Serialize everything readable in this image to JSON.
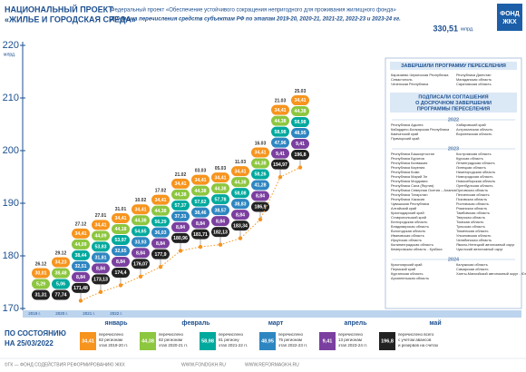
{
  "header": {
    "title_lines": [
      "НАЦИОНАЛЬНЫЙ ПРОЕКТ",
      "«ЖИЛЬЕ И ГОРОДСКАЯ СРЕДА»"
    ],
    "subtitle": "Федеральный проект «Обеспечение устойчивого сокращения непригодного для проживания жилищного фонда»",
    "subtitle2": "Динамика перечисления средств субъектам РФ по этапам 2019-20, 2020-21, 2021-22, 2022-23 и 2023-24 гг.",
    "total": "330,51",
    "total_unit": "млрд.",
    "logo_lines": [
      "ФОНД",
      "ЖКХ"
    ]
  },
  "chart_data": {
    "type": "line",
    "y_unit": "млрд.",
    "ylim": [
      170,
      220
    ],
    "yticks": [
      170,
      180,
      190,
      200,
      210,
      220
    ],
    "line_color": "#f7941d",
    "years": [
      "2019 г.",
      "2020 г.",
      "2021 г.",
      "2022 г."
    ],
    "months": [
      "январь",
      "февраль",
      "март",
      "апрель",
      "май"
    ],
    "columns": [
      {
        "date": "26.12",
        "values": [
          30.01,
          5.29,
          31.31
        ],
        "value_labels": [
          "30,01",
          "5,29",
          "31,31"
        ],
        "colors": [
          "#f7941d",
          "#8dc63f",
          "#222222"
        ]
      },
      {
        "date": "29.12",
        "values": [
          34.23,
          38.48,
          5.06,
          77.74
        ],
        "value_labels": [
          "34,23",
          "38,48",
          "5,06",
          "77,74"
        ],
        "colors": [
          "#f7941d",
          "#8dc63f",
          "#00a99d",
          "#222222"
        ]
      },
      {
        "date": "27.12",
        "values": [
          34.41,
          44.09,
          38.44,
          32.51,
          8.84,
          171.48
        ],
        "value_labels": [
          "34,41",
          "44,09",
          "38,44",
          "32,51",
          "8,84",
          "171,48"
        ],
        "colors": [
          "#f7941d",
          "#8dc63f",
          "#00a99d",
          "#2e86c1",
          "#7b3fa0",
          "#222222"
        ]
      },
      {
        "date": "27.01",
        "values": [
          34.41,
          44.09,
          53.83,
          31.81,
          8.84,
          173.13
        ],
        "value_labels": [
          "34,41",
          "44,09",
          "53,83",
          "31,81",
          "8,84",
          "173,13"
        ],
        "colors": [
          "#f7941d",
          "#8dc63f",
          "#00a99d",
          "#2e86c1",
          "#7b3fa0",
          "#222222"
        ]
      },
      {
        "date": "31.01",
        "values": [
          34.41,
          44.18,
          53.97,
          32.65,
          8.84,
          174.4
        ],
        "value_labels": [
          "34,41",
          "44,18",
          "53,97",
          "32,65",
          "8,84",
          "174,4"
        ],
        "colors": [
          "#f7941d",
          "#8dc63f",
          "#00a99d",
          "#2e86c1",
          "#7b3fa0",
          "#222222"
        ]
      },
      {
        "date": "10.02",
        "values": [
          34.41,
          44.38,
          54.65,
          33.93,
          8.84,
          176.07
        ],
        "value_labels": [
          "34,41",
          "44,38",
          "54,65",
          "33,93",
          "8,84",
          "176,07"
        ],
        "colors": [
          "#f7941d",
          "#8dc63f",
          "#00a99d",
          "#2e86c1",
          "#7b3fa0",
          "#222222"
        ]
      },
      {
        "date": "17.02",
        "values": [
          34.41,
          44.38,
          56.29,
          36.03,
          8.84,
          177.9
        ],
        "value_labels": [
          "34,41",
          "44,38",
          "56,29",
          "36,03",
          "8,84",
          "177,9"
        ],
        "colors": [
          "#f7941d",
          "#8dc63f",
          "#00a99d",
          "#2e86c1",
          "#7b3fa0",
          "#222222"
        ]
      },
      {
        "date": "21.02",
        "values": [
          34.41,
          44.38,
          57.37,
          37.31,
          8.84,
          180.96
        ],
        "value_labels": [
          "34,41",
          "44,38",
          "57,37",
          "37,31",
          "8,84",
          "180,96"
        ],
        "colors": [
          "#f7941d",
          "#8dc63f",
          "#00a99d",
          "#2e86c1",
          "#7b3fa0",
          "#222222"
        ]
      },
      {
        "date": "03.03",
        "values": [
          34.41,
          44.38,
          57.62,
          38.46,
          8.84,
          181.71
        ],
        "value_labels": [
          "34,41",
          "44,38",
          "57,62",
          "38,46",
          "8,84",
          "181,71"
        ],
        "colors": [
          "#f7941d",
          "#8dc63f",
          "#00a99d",
          "#2e86c1",
          "#7b3fa0",
          "#222222"
        ]
      },
      {
        "date": "05.03",
        "values": [
          34.41,
          44.38,
          57.78,
          38.57,
          8.84,
          182.13
        ],
        "value_labels": [
          "34,41",
          "44,38",
          "57,78",
          "38,57",
          "8,84",
          "182,13"
        ],
        "colors": [
          "#f7941d",
          "#8dc63f",
          "#00a99d",
          "#2e86c1",
          "#7b3fa0",
          "#222222"
        ]
      },
      {
        "date": "11.03",
        "values": [
          34.41,
          44.38,
          58.08,
          38.83,
          8.84,
          183.34
        ],
        "value_labels": [
          "34,41",
          "44,38",
          "58,08",
          "38,83",
          "8,84",
          "183,34"
        ],
        "colors": [
          "#f7941d",
          "#8dc63f",
          "#00a99d",
          "#2e86c1",
          "#7b3fa0",
          "#222222"
        ]
      },
      {
        "date": "16.03",
        "values": [
          34.41,
          44.38,
          58.26,
          41.28,
          8.84,
          186.9
        ],
        "value_labels": [
          "34,41",
          "44,38",
          "58,26",
          "41,28",
          "8,84",
          "186,9"
        ],
        "colors": [
          "#f7941d",
          "#8dc63f",
          "#00a99d",
          "#2e86c1",
          "#7b3fa0",
          "#222222"
        ]
      },
      {
        "date": "21.03",
        "values": [
          34.41,
          44.38,
          58.98,
          47.96,
          9.41,
          194.97
        ],
        "value_labels": [
          "34,41",
          "44,38",
          "58,98",
          "47,96",
          "9,41",
          "194,97"
        ],
        "colors": [
          "#f7941d",
          "#8dc63f",
          "#00a99d",
          "#2e86c1",
          "#7b3fa0",
          "#222222"
        ]
      },
      {
        "date": "25.03",
        "values": [
          34.41,
          44.38,
          58.98,
          48.95,
          9.41,
          196.8
        ],
        "value_labels": [
          "34,41",
          "44,38",
          "58,98",
          "48,95",
          "9,41",
          "196,8"
        ],
        "colors": [
          "#f7941d",
          "#8dc63f",
          "#00a99d",
          "#2e86c1",
          "#7b3fa0",
          "#222222"
        ]
      }
    ]
  },
  "legend": [
    {
      "value": 34.41,
      "value_label": "34,41",
      "color": "#f7941d",
      "lines": [
        "перечислено",
        "82 регионам",
        "этап 2019-20 гг."
      ]
    },
    {
      "value": 44.38,
      "value_label": "44,38",
      "color": "#8dc63f",
      "lines": [
        "перечислено",
        "82 регионам",
        "этап 2020-21 гг."
      ]
    },
    {
      "value": 58.98,
      "value_label": "58,98",
      "color": "#00a99d",
      "lines": [
        "перечислено",
        "81 региону",
        "этап 2021-22 гг."
      ]
    },
    {
      "value": 48.95,
      "value_label": "48,95",
      "color": "#2e86c1",
      "lines": [
        "перечислено",
        "75 регионам",
        "этап 2022-23 гг."
      ]
    },
    {
      "value": 9.41,
      "value_label": "9,41",
      "color": "#7b3fa0",
      "lines": [
        "перечислено",
        "13 регионам",
        "этап 2023-24 гг."
      ]
    },
    {
      "value": 196.8,
      "value_label": "196,8",
      "color": "#222222",
      "lines": [
        "перечислено всего",
        "с учетом авансов",
        "и резервов на счетах"
      ]
    }
  ],
  "status": [
    "ПО СОСТОЯНИЮ",
    "НА 25/03/2022"
  ],
  "side_panel": {
    "completed_title": "ЗАВЕРШИЛИ ПРОГРАММУ ПЕРЕСЕЛЕНИЯ",
    "completed": [
      "Карачаево-Черкесская Республика",
      "Севастополь",
      "Чеченская Республика",
      "Республика Дагестан",
      "Магаданская область",
      "Саратовская область"
    ],
    "early_title": [
      "ПОДПИСАЛИ СОГЛАШЕНИЯ",
      "О ДОСРОЧНОМ ЗАВЕРШЕНИИ",
      "ПРОГРАММЫ ПЕРЕСЕЛЕНИЯ"
    ],
    "groups": [
      {
        "year": "2022",
        "regions": [
          "Республика Адыгея",
          "Кабардино-Балкарская Республика",
          "Камчатский край",
          "Приморский край",
          "Хабаровский край",
          "Астраханская область",
          "Воронежская область"
        ]
      },
      {
        "year": "2023",
        "regions": [
          "Республика Башкортостан",
          "Республика Бурятия",
          "Республика Калмыкия",
          "Республика Карелия",
          "Республика Коми",
          "Республика Марий Эл",
          "Республика Мордовия",
          "Республика Саха (Якутия)",
          "Республика Северная Осетия – Алания",
          "Республика Татарстан",
          "Республика Хакасия",
          "Чувашская Республика",
          "Алтайский край",
          "Краснодарский край",
          "Ставропольский край",
          "Белгородская область",
          "Владимирская область",
          "Вологодская область",
          "Ивановская область",
          "Иркутская область",
          "Калининградская область",
          "Кемеровская область - Кузбасс",
          "Костромская область",
          "Курская область",
          "Ленинградская область",
          "Липецкая область",
          "Нижегородская область",
          "Новгородская область",
          "Новосибирская область",
          "Оренбургская область",
          "Орловская область",
          "Пензенская область",
          "Псковская область",
          "Ростовская область",
          "Рязанская область",
          "Тамбовская область",
          "Тверская область",
          "Томская область",
          "Тульская область",
          "Тюменская область",
          "Ульяновская область",
          "Челябинская область",
          "Ямало-Ненецкий автономный округ",
          "Чукотский автономный округ"
        ]
      },
      {
        "year": "2024",
        "regions": [
          "Красноярский край",
          "Пермский край",
          "Курганская область",
          "Архангельская область",
          "Калужская область",
          "Самарская область",
          "Ханты-Мансийский автономный округ - Югра"
        ]
      }
    ]
  },
  "footer": {
    "copyright": "©ГК — ФОНД СОДЕЙСТВИЯ РЕФОРМИРОВАНИЮ ЖКХ",
    "site1": "WWW.FONDGKH.RU",
    "site2": "WWW.REFORMAGKH.RU"
  }
}
